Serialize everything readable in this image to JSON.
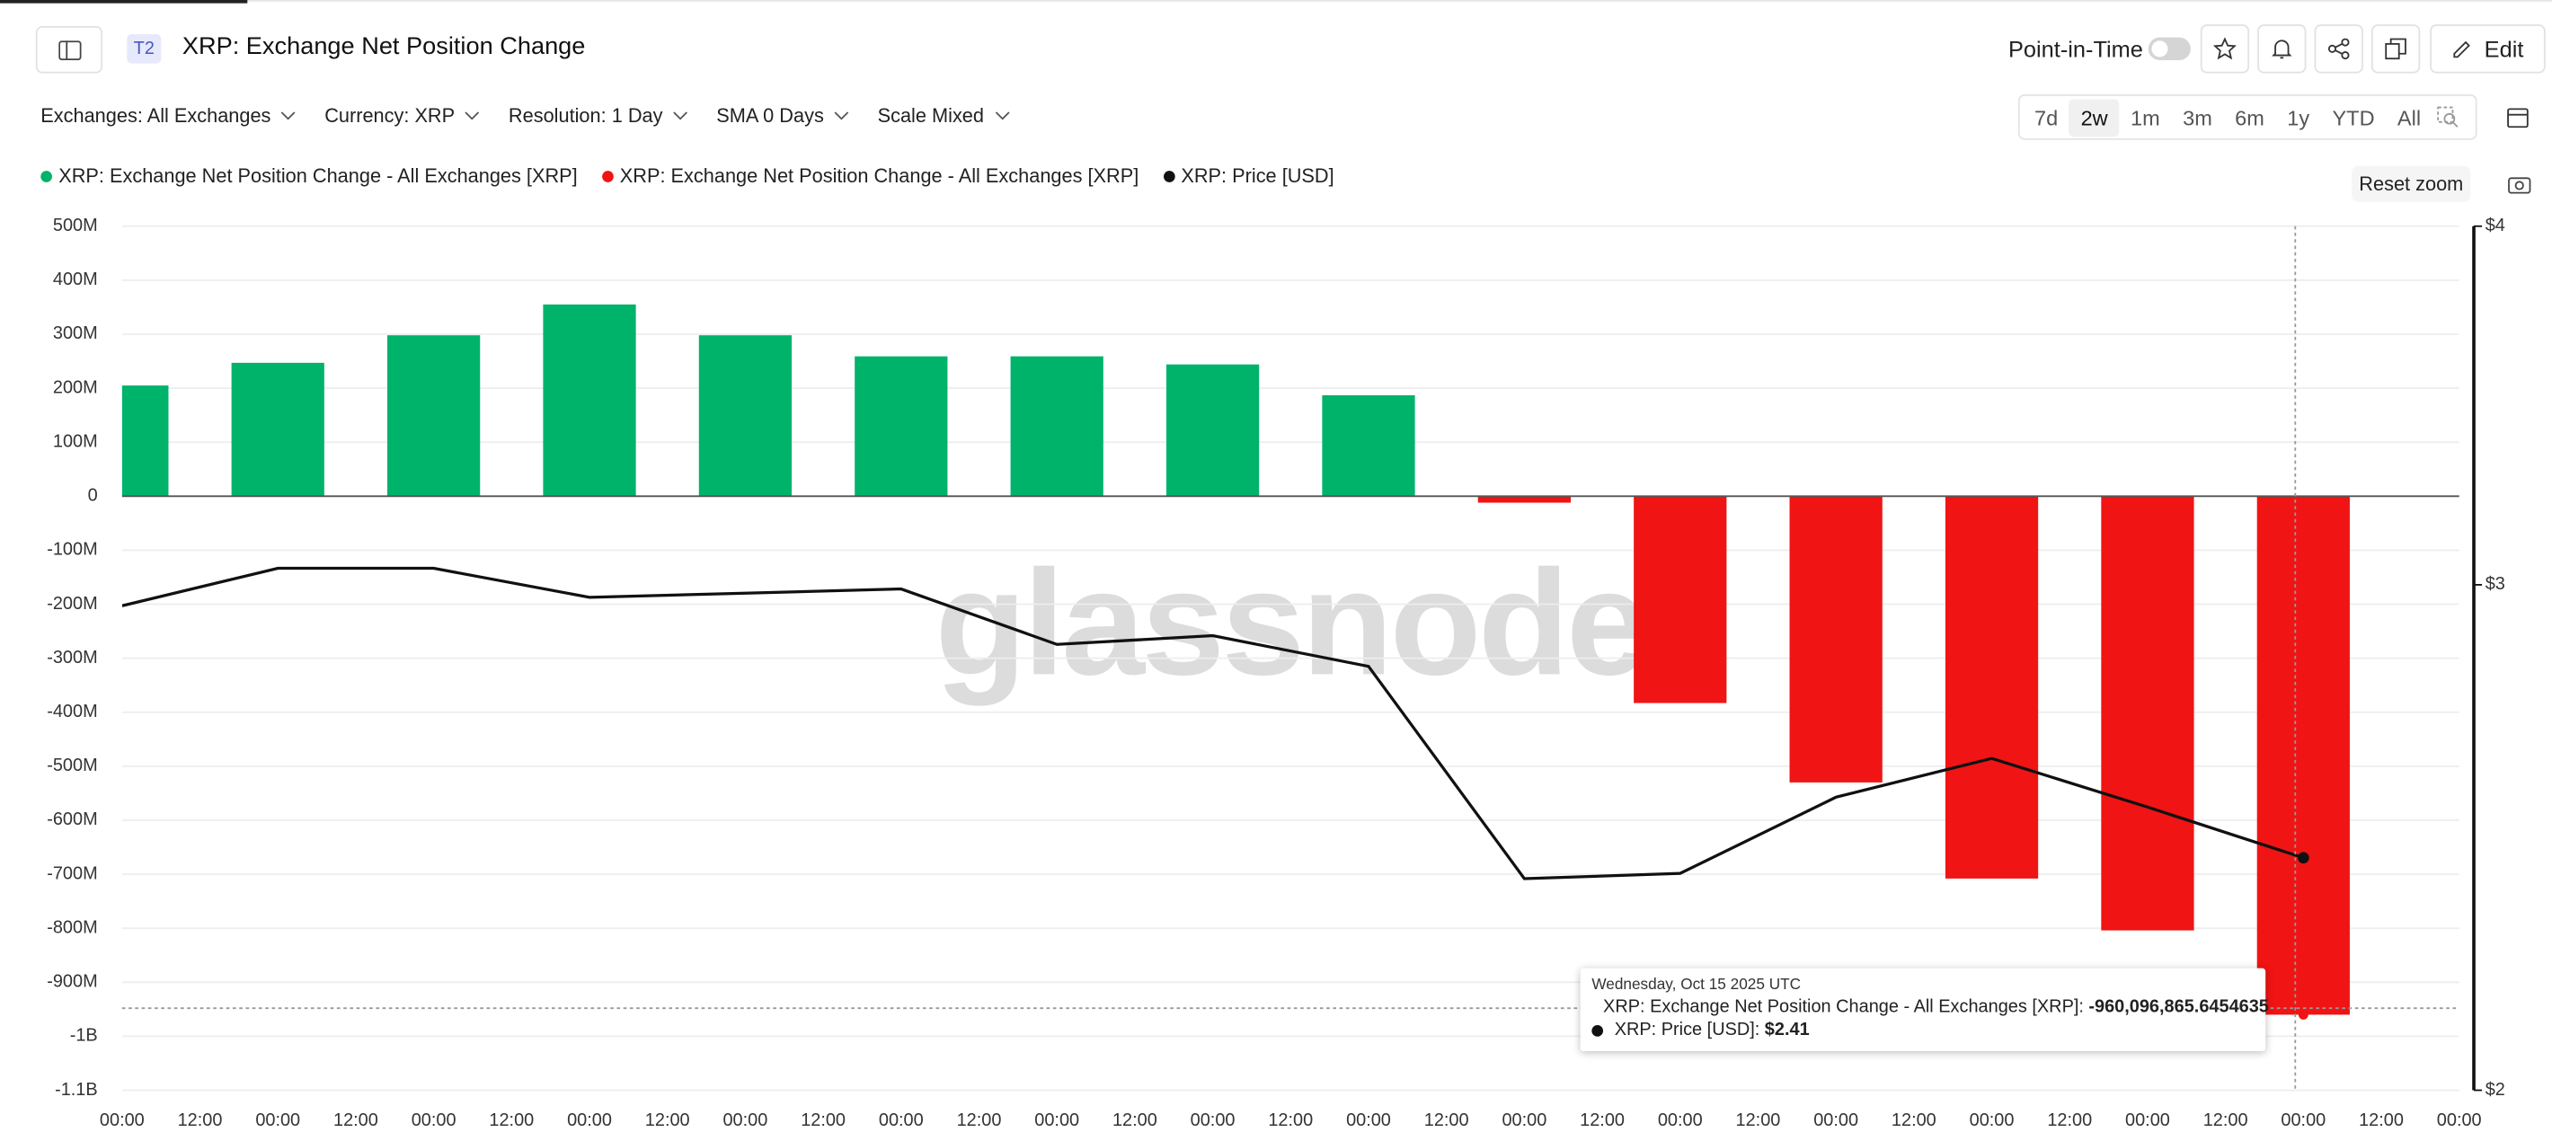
{
  "header": {
    "badge": "T2",
    "title": "XRP: Exchange Net Position Change",
    "point_in_time": "Point-in-Time",
    "edit": "Edit"
  },
  "filters": [
    "Exchanges: All Exchanges",
    "Currency: XRP",
    "Resolution: 1 Day",
    "SMA 0 Days",
    "Scale Mixed"
  ],
  "ranges": [
    "7d",
    "2w",
    "1m",
    "3m",
    "6m",
    "1y",
    "YTD",
    "All"
  ],
  "selected_range": 1,
  "reset_zoom": "Reset zoom",
  "tooltip": {
    "date": "Wednesday, Oct 15 2025 UTC",
    "rows": [
      {
        "label": "XRP: Exchange Net Position Change - All Exchanges [XRP]:",
        "value": "-960,096,865.6454635"
      },
      {
        "label": "XRP: Price [USD]:",
        "value": "$2.41"
      }
    ]
  },
  "chart_data": {
    "type": "bar",
    "watermark": "glassnode",
    "x_tick_labels": [
      "00:00",
      "12:00",
      "00:00",
      "12:00",
      "00:00",
      "12:00",
      "00:00",
      "12:00",
      "00:00",
      "12:00",
      "00:00",
      "12:00",
      "00:00",
      "12:00",
      "00:00",
      "12:00",
      "00:00",
      "12:00",
      "00:00",
      "12:00",
      "00:00",
      "12:00",
      "00:00",
      "12:00",
      "00:00",
      "12:00",
      "00:00",
      "12:00",
      "00:00",
      "12:00",
      "00:00"
    ],
    "series": [
      {
        "name": "XRP: Exchange Net Position Change - All Exchanges [XRP]",
        "color": "#00b36b",
        "type": "bar",
        "values": [
          205000000,
          247000000,
          298000000,
          355000000,
          298000000,
          259000000,
          259000000,
          244000000,
          187000000,
          null,
          null,
          null,
          null,
          null,
          null
        ]
      },
      {
        "name": "XRP: Exchange Net Position Change - All Exchanges [XRP]",
        "color": "#f01414",
        "type": "bar",
        "values": [
          null,
          null,
          null,
          null,
          null,
          null,
          null,
          null,
          null,
          -12000000,
          -383000000,
          -530000000,
          -708000000,
          -804000000,
          -960096865.6454635
        ]
      },
      {
        "name": "XRP: Price [USD]",
        "color": "#111111",
        "type": "line",
        "axis": "y2",
        "values": [
          2.95,
          3.04,
          3.04,
          2.97,
          2.98,
          2.99,
          2.86,
          2.88,
          2.81,
          2.37,
          2.38,
          2.53,
          2.61,
          2.51,
          2.41
        ]
      }
    ],
    "ylim": [
      -1100000000,
      500000000
    ],
    "yticks": [
      {
        "value": 500000000,
        "label": "500M"
      },
      {
        "value": 400000000,
        "label": "400M"
      },
      {
        "value": 300000000,
        "label": "300M"
      },
      {
        "value": 200000000,
        "label": "200M"
      },
      {
        "value": 100000000,
        "label": "100M"
      },
      0,
      {
        "value": -100000000,
        "label": "-100M"
      },
      {
        "value": -200000000,
        "label": "-200M"
      },
      {
        "value": -300000000,
        "label": "-300M"
      },
      {
        "value": -400000000,
        "label": "-400M"
      },
      {
        "value": -500000000,
        "label": "-500M"
      },
      {
        "value": -600000000,
        "label": "-600M"
      },
      {
        "value": -700000000,
        "label": "-700M"
      },
      {
        "value": -800000000,
        "label": "-800M"
      },
      {
        "value": -900000000,
        "label": "-900M"
      },
      {
        "value": -1000000000,
        "label": "-1B"
      },
      {
        "value": -1100000000,
        "label": "-1.1B"
      }
    ],
    "y2lim": [
      2,
      4
    ],
    "y2scale": "log",
    "y2ticks": [
      {
        "value": 4,
        "label": "$4"
      },
      {
        "value": 3,
        "label": "$3"
      },
      {
        "value": 2,
        "label": "$2"
      }
    ],
    "grid": true
  }
}
